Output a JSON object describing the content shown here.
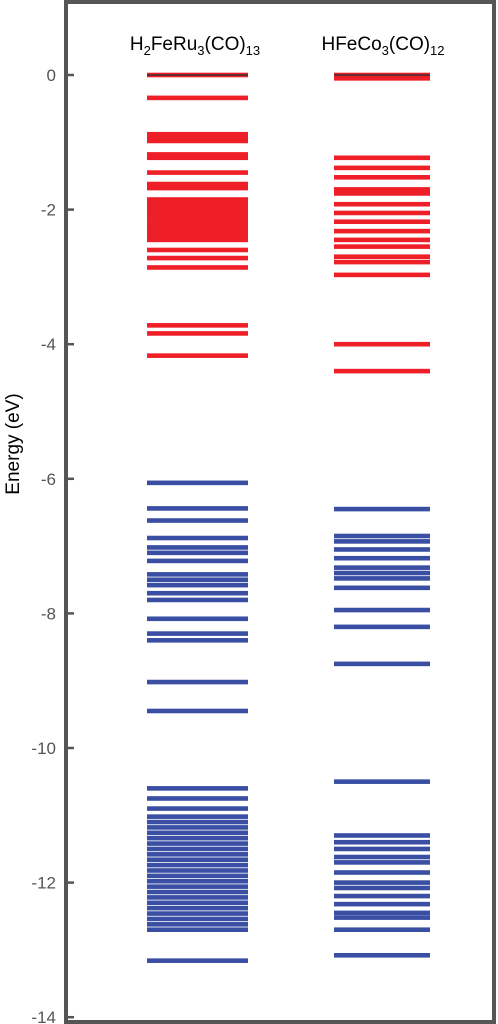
{
  "chart_data": {
    "type": "bar",
    "ylabel": "Energy (eV)",
    "ylim": [
      -14,
      1.1
    ],
    "yticks": [
      0,
      -2,
      -4,
      -6,
      -8,
      -10,
      -12,
      -14
    ],
    "ytick_labels": [
      "0",
      "-2",
      "-4",
      "-6",
      "-8",
      "-10",
      "-12",
      "-14"
    ],
    "grid": false,
    "legend": "none",
    "colors": {
      "unoccupied": "#ee1f26",
      "occupied": "#3a4fa3",
      "frame": "#555555",
      "zero_line": "#333333"
    },
    "columns": [
      {
        "title": {
          "parts": [
            {
              "t": "H",
              "sub": false
            },
            {
              "t": "2",
              "sub": true
            },
            {
              "t": "FeRu",
              "sub": false
            },
            {
              "t": "3",
              "sub": true
            },
            {
              "t": "(CO)",
              "sub": false
            },
            {
              "t": "13",
              "sub": true
            }
          ]
        },
        "unoccupied_levels": [
          0.0,
          -0.34,
          -0.88,
          -0.93,
          -0.98,
          -1.18,
          -1.23,
          -1.45,
          -1.62,
          -1.68,
          -1.85,
          -1.9,
          -1.95,
          -2.0,
          -2.05,
          -2.1,
          -2.15,
          -2.2,
          -2.25,
          -2.3,
          -2.35,
          -2.4,
          -2.45,
          -2.6,
          -2.72,
          -2.86,
          -3.72,
          -3.84,
          -4.17
        ],
        "occupied_levels": [
          -6.06,
          -6.44,
          -6.62,
          -6.88,
          -7.02,
          -7.1,
          -7.22,
          -7.42,
          -7.5,
          -7.58,
          -7.7,
          -7.8,
          -8.08,
          -8.3,
          -8.4,
          -9.02,
          -9.45,
          -10.6,
          -10.75,
          -10.9,
          -11.02,
          -11.1,
          -11.18,
          -11.26,
          -11.34,
          -11.42,
          -11.5,
          -11.58,
          -11.66,
          -11.74,
          -11.82,
          -11.9,
          -11.98,
          -12.06,
          -12.14,
          -12.22,
          -12.3,
          -12.38,
          -12.46,
          -12.54,
          -12.62,
          -12.7,
          -13.16
        ]
      },
      {
        "title": {
          "parts": [
            {
              "t": "HFeCo",
              "sub": false
            },
            {
              "t": "3",
              "sub": true
            },
            {
              "t": "(CO)",
              "sub": false
            },
            {
              "t": "12",
              "sub": true
            }
          ]
        },
        "unoccupied_levels": [
          0.0,
          -0.05,
          -1.23,
          -1.38,
          -1.52,
          -1.7,
          -1.76,
          -1.92,
          -2.05,
          -2.18,
          -2.32,
          -2.45,
          -2.55,
          -2.7,
          -2.78,
          -2.97,
          -4.0,
          -4.4
        ],
        "occupied_levels": [
          -6.45,
          -6.85,
          -6.93,
          -7.05,
          -7.18,
          -7.32,
          -7.4,
          -7.48,
          -7.62,
          -7.95,
          -8.2,
          -8.75,
          -10.5,
          -11.3,
          -11.4,
          -11.5,
          -11.62,
          -11.7,
          -11.85,
          -12.0,
          -12.08,
          -12.2,
          -12.32,
          -12.45,
          -12.52,
          -12.7,
          -13.08
        ]
      }
    ]
  }
}
